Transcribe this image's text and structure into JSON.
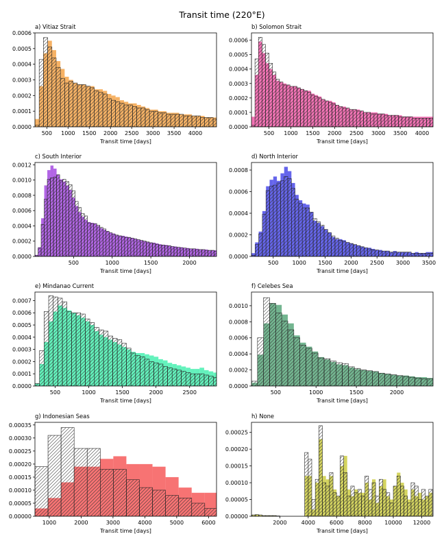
{
  "figure_title": "Transit time (220°E)",
  "chart_data": [
    {
      "type": "histogram",
      "title": "a) Vitiaz Strait",
      "xlabel": "Transit time [days]",
      "ylabel": "",
      "color": "#f5a54a",
      "xlim": [
        220,
        4500
      ],
      "ylim": [
        0,
        0.0006
      ],
      "xticks": [
        500,
        1000,
        1500,
        2000,
        2500,
        3000,
        3500,
        4000
      ],
      "yticks": [
        0,
        0.0001,
        0.0002,
        0.0003,
        0.0004,
        0.0005,
        0.0006
      ],
      "ytick_labels": [
        "0.0000",
        "0.0001",
        "0.0002",
        "0.0003",
        "0.0004",
        "0.0005",
        "0.0006"
      ],
      "bin_start": 220,
      "bin_width": 100,
      "filled_series": [
        5e-05,
        0.00026,
        0.00047,
        0.00055,
        0.00049,
        0.00042,
        0.00037,
        0.00032,
        0.0003,
        0.00028,
        0.00027,
        0.00027,
        0.00026,
        0.00026,
        0.00024,
        0.00024,
        0.00023,
        0.00021,
        0.0002,
        0.00019,
        0.00017,
        0.00016,
        0.00015,
        0.00015,
        0.00014,
        0.00013,
        0.00012,
        0.00011,
        0.00011,
        0.0001,
        0.0001,
        9e-05,
        9e-05,
        9e-05,
        8e-05,
        8e-05,
        8e-05,
        7e-05,
        7e-05,
        7e-05,
        6e-05,
        6e-05,
        6e-05
      ],
      "hatched_series": [
        1e-05,
        0.00043,
        0.00057,
        0.00051,
        0.00044,
        0.00038,
        0.00031,
        0.00028,
        0.00029,
        0.00028,
        0.00027,
        0.00027,
        0.00026,
        0.00025,
        0.00023,
        0.00022,
        0.00021,
        0.00018,
        0.00017,
        0.00016,
        0.00015,
        0.00014,
        0.00014,
        0.00013,
        0.00012,
        0.00012,
        0.00011,
        0.0001,
        0.0001,
        9e-05,
        9e-05,
        8e-05,
        8e-05,
        8e-05,
        8e-05,
        7e-05,
        7e-05,
        7e-05,
        7e-05,
        6e-05,
        6e-05,
        6e-05,
        5e-05
      ]
    },
    {
      "type": "histogram",
      "title": "b) Solomon Strait",
      "xlabel": "Transit time [days]",
      "ylabel": "",
      "color": "#f15aa8",
      "xlim": [
        100,
        4250
      ],
      "ylim": [
        0,
        0.00065
      ],
      "xticks": [
        500,
        1000,
        1500,
        2000,
        2500,
        3000,
        3500,
        4000
      ],
      "yticks": [
        0,
        0.0001,
        0.0002,
        0.0003,
        0.0004,
        0.0005,
        0.0006
      ],
      "ytick_labels": [
        "0.0000",
        "0.0001",
        "0.0002",
        "0.0003",
        "0.0004",
        "0.0005",
        "0.0006"
      ],
      "bin_start": 100,
      "bin_width": 80,
      "filled_series": [
        7e-05,
        0.00036,
        0.00059,
        0.00051,
        0.00044,
        0.0004,
        0.00036,
        0.00032,
        0.00031,
        0.0003,
        0.00029,
        0.00028,
        0.00028,
        0.00027,
        0.00026,
        0.00025,
        0.00025,
        0.00023,
        0.00022,
        0.00021,
        0.00019,
        0.00018,
        0.00018,
        0.00017,
        0.00015,
        0.00014,
        0.00014,
        0.00013,
        0.00012,
        0.00012,
        0.00012,
        0.00011,
        0.0001,
        0.0001,
        0.0001,
        0.0001,
        9e-05,
        9e-05,
        9e-05,
        8e-05,
        8e-05,
        8e-05,
        8e-05,
        7e-05,
        7e-05,
        7e-05,
        7e-05,
        7e-05,
        7e-05,
        7e-05,
        7e-05,
        7e-05
      ],
      "hatched_series": [
        1e-05,
        0.00047,
        0.00062,
        0.00057,
        0.00051,
        0.00044,
        0.00038,
        0.00033,
        0.00031,
        0.00029,
        0.00029,
        0.00028,
        0.00028,
        0.00027,
        0.00026,
        0.00025,
        0.00024,
        0.00022,
        0.00021,
        0.0002,
        0.00019,
        0.00018,
        0.00017,
        0.00016,
        0.00015,
        0.00014,
        0.00013,
        0.00013,
        0.00012,
        0.00012,
        0.00011,
        0.00011,
        0.0001,
        0.0001,
        9e-05,
        9e-05,
        9e-05,
        9e-05,
        8e-05,
        8e-05,
        8e-05,
        8e-05,
        7e-05,
        7e-05,
        7e-05,
        7e-05,
        6e-05,
        6e-05,
        6e-05,
        6e-05,
        6e-05,
        6e-05
      ]
    },
    {
      "type": "histogram",
      "title": "c) South Interior",
      "xlabel": "Transit time [days]",
      "ylabel": "",
      "color": "#a44ae0",
      "xlim": [
        0,
        2350
      ],
      "ylim": [
        0,
        0.00123
      ],
      "xticks": [
        500,
        1000,
        1500,
        2000
      ],
      "yticks": [
        0,
        0.0002,
        0.0004,
        0.0006,
        0.0008,
        0.001,
        0.0012
      ],
      "ytick_labels": [
        "0.0000",
        "0.0002",
        "0.0004",
        "0.0006",
        "0.0008",
        "0.0010",
        "0.0012"
      ],
      "bin_start": 0,
      "bin_width": 40,
      "filled_series": [
        2e-05,
        0.00012,
        0.0005,
        0.00093,
        0.00113,
        0.00119,
        0.00115,
        0.00107,
        0.00101,
        0.00098,
        0.00093,
        0.00087,
        0.00077,
        0.00066,
        0.00058,
        0.00052,
        0.00048,
        0.00045,
        0.00044,
        0.00043,
        0.0004,
        0.00037,
        0.00035,
        0.00033,
        0.00031,
        0.0003,
        0.00028,
        0.00027,
        0.00027,
        0.00026,
        0.00025,
        0.00024,
        0.00023,
        0.00022,
        0.00021,
        0.0002,
        0.00019,
        0.00018,
        0.00018,
        0.00017,
        0.00016,
        0.00015,
        0.00015,
        0.00014,
        0.00013,
        0.00013,
        0.00012,
        0.00012,
        0.00011,
        0.00011,
        0.0001,
        0.0001,
        0.0001,
        9e-05,
        9e-05,
        9e-05,
        8e-05,
        8e-05,
        8e-05,
        8e-05
      ],
      "hatched_series": [
        1e-05,
        0.00011,
        0.00042,
        0.00075,
        0.00101,
        0.00103,
        0.00104,
        0.00107,
        0.00099,
        0.00101,
        0.00098,
        0.00094,
        0.00086,
        0.00072,
        0.00064,
        0.00056,
        0.00053,
        0.00044,
        0.00043,
        0.00043,
        0.00041,
        0.00038,
        0.00036,
        0.00033,
        0.00031,
        0.00029,
        0.00028,
        0.00027,
        0.00026,
        0.00025,
        0.00025,
        0.00024,
        0.00023,
        0.00022,
        0.00021,
        0.0002,
        0.00019,
        0.00018,
        0.00017,
        0.00016,
        0.00015,
        0.00015,
        0.00014,
        0.00014,
        0.00013,
        0.00012,
        0.00012,
        0.00011,
        0.00011,
        0.0001,
        0.0001,
        0.0001,
        9e-05,
        9e-05,
        9e-05,
        8e-05,
        8e-05,
        8e-05,
        7e-05,
        7e-05
      ]
    },
    {
      "type": "histogram",
      "title": "d) North Interior",
      "xlabel": "Transit time [days]",
      "ylabel": "",
      "color": "#4a4ae8",
      "xlim": [
        80,
        3580
      ],
      "ylim": [
        0,
        0.00087
      ],
      "xticks": [
        500,
        1000,
        1500,
        2000,
        2500,
        3000,
        3500
      ],
      "yticks": [
        0,
        0.0002,
        0.0004,
        0.0006,
        0.0008
      ],
      "ytick_labels": [
        "0.0000",
        "0.0002",
        "0.0004",
        "0.0006",
        "0.0008"
      ],
      "bin_start": 80,
      "bin_width": 70,
      "filled_series": [
        3e-05,
        0.00013,
        0.00023,
        0.00042,
        0.00065,
        0.00071,
        0.00074,
        0.0007,
        0.00077,
        0.00083,
        0.00079,
        0.00068,
        0.00057,
        0.00052,
        0.00049,
        0.00048,
        0.00041,
        0.00033,
        0.00031,
        0.00028,
        0.00025,
        0.00022,
        0.00018,
        0.00016,
        0.00016,
        0.00015,
        0.00013,
        0.00012,
        0.00011,
        0.0001,
        9e-05,
        8e-05,
        8e-05,
        7e-05,
        6e-05,
        6e-05,
        5e-05,
        5e-05,
        4e-05,
        5e-05,
        4e-05,
        4e-05,
        4e-05,
        4e-05,
        3e-05,
        4e-05,
        3e-05,
        3e-05,
        4e-05,
        4e-05
      ],
      "hatched_series": [
        1e-05,
        0.00011,
        0.00021,
        0.00039,
        0.00061,
        0.00065,
        0.00066,
        0.00068,
        0.0007,
        0.00074,
        0.00072,
        0.00063,
        0.00053,
        0.00049,
        0.00045,
        0.00045,
        0.00041,
        0.00035,
        0.00032,
        0.00029,
        0.00025,
        0.00022,
        0.00019,
        0.00017,
        0.00015,
        0.00014,
        0.00013,
        0.00012,
        0.00011,
        0.0001,
        9e-05,
        8e-05,
        7e-05,
        6e-05,
        6e-05,
        5e-05,
        5e-05,
        5e-05,
        4e-05,
        4e-05,
        4e-05,
        4e-05,
        4e-05,
        4e-05,
        3e-05,
        3e-05,
        3e-05,
        3e-05,
        3e-05,
        3e-05
      ]
    },
    {
      "type": "histogram",
      "title": "e) Mindanao Current",
      "xlabel": "Transit time [days]",
      "ylabel": "",
      "color": "#48f0b0",
      "xlim": [
        200,
        2900
      ],
      "ylim": [
        0,
        0.00077
      ],
      "xticks": [
        500,
        1000,
        1500,
        2000,
        2500
      ],
      "yticks": [
        0,
        0.0001,
        0.0002,
        0.0003,
        0.0004,
        0.0005,
        0.0006,
        0.0007
      ],
      "ytick_labels": [
        "0.0000",
        "0.0001",
        "0.0002",
        "0.0003",
        "0.0004",
        "0.0005",
        "0.0006",
        "0.0007"
      ],
      "bin_start": 200,
      "bin_width": 68,
      "filled_series": [
        2e-05,
        0.00018,
        0.00036,
        0.00053,
        0.00061,
        0.00066,
        0.00064,
        0.00062,
        0.0006,
        0.00058,
        0.00056,
        0.00053,
        0.0005,
        0.00045,
        0.00042,
        0.0004,
        0.00038,
        0.00036,
        0.00034,
        0.00032,
        0.0003,
        0.00028,
        0.00027,
        0.00027,
        0.00026,
        0.00025,
        0.00024,
        0.00022,
        0.00021,
        0.00019,
        0.00018,
        0.00017,
        0.00016,
        0.00015,
        0.00014,
        0.00014,
        0.00015,
        0.00013,
        0.00012,
        0.00011,
        0.0001
      ],
      "hatched_series": [
        2e-05,
        0.00029,
        0.00061,
        0.00074,
        0.00073,
        0.00072,
        0.00069,
        0.00061,
        0.0006,
        0.0006,
        0.00059,
        0.00055,
        0.00052,
        0.00048,
        0.00046,
        0.00045,
        0.00041,
        0.00039,
        0.00038,
        0.00035,
        0.00031,
        0.00027,
        0.00025,
        0.00024,
        0.00022,
        0.0002,
        0.00019,
        0.00018,
        0.00016,
        0.00015,
        0.00014,
        0.00013,
        0.00012,
        0.00011,
        0.0001,
        0.0001,
        0.0001,
        9e-05,
        8e-05,
        7e-05,
        7e-05
      ]
    },
    {
      "type": "histogram",
      "title": "f) Celebes Sea",
      "xlabel": "Transit time [days]",
      "ylabel": "",
      "color": "#5aa87c",
      "xlim": [
        200,
        2450
      ],
      "ylim": [
        0,
        0.00117
      ],
      "xticks": [
        500,
        1000,
        1500,
        2000
      ],
      "yticks": [
        0,
        0.0002,
        0.0004,
        0.0006,
        0.0008,
        0.001
      ],
      "ytick_labels": [
        "0.0000",
        "0.0002",
        "0.0004",
        "0.0006",
        "0.0008",
        "0.0010"
      ],
      "bin_start": 200,
      "bin_width": 75,
      "filled_series": [
        4e-05,
        0.00039,
        0.00078,
        0.00103,
        0.00101,
        0.00089,
        0.00078,
        0.00063,
        0.00054,
        0.00049,
        0.00043,
        0.00036,
        0.00033,
        0.0003,
        0.00027,
        0.00026,
        0.00023,
        0.00021,
        0.0002,
        0.00019,
        0.00018,
        0.00016,
        0.00015,
        0.00014,
        0.00013,
        0.00013,
        0.00012,
        0.00011,
        0.00011,
        0.0001
      ],
      "hatched_series": [
        6e-05,
        0.0006,
        0.0011,
        0.00103,
        0.00091,
        0.00081,
        0.0007,
        0.0006,
        0.00051,
        0.00047,
        0.00041,
        0.00035,
        0.00034,
        0.00031,
        0.00029,
        0.00028,
        0.00024,
        0.00022,
        0.0002,
        0.00019,
        0.00018,
        0.00016,
        0.00015,
        0.00014,
        0.00013,
        0.00012,
        0.00011,
        0.0001,
        9e-05,
        9e-05
      ]
    },
    {
      "type": "histogram",
      "title": "g) Indonesian Seas",
      "xlabel": "Transit time [days]",
      "ylabel": "",
      "color": "#f65a5a",
      "xlim": [
        550,
        6250
      ],
      "ylim": [
        0,
        0.00036
      ],
      "xticks": [
        1000,
        2000,
        3000,
        4000,
        5000,
        6000
      ],
      "yticks": [
        0,
        5e-05,
        0.0001,
        0.00015,
        0.0002,
        0.00025,
        0.0003,
        0.00035
      ],
      "ytick_labels": [
        "0.00000",
        "0.00005",
        "0.00010",
        "0.00015",
        "0.00020",
        "0.00025",
        "0.00030",
        "0.00035"
      ],
      "bin_start": 550,
      "bin_width": 410,
      "filled_series": [
        3e-05,
        7e-05,
        0.00013,
        0.00019,
        0.00019,
        0.00022,
        0.00023,
        0.0002,
        0.0002,
        0.00019,
        0.00015,
        0.00011,
        9e-05,
        9e-05
      ],
      "hatched_series": [
        0.00019,
        0.00031,
        0.00034,
        0.00026,
        0.00026,
        0.00018,
        0.00018,
        0.00014,
        0.00011,
        0.0001,
        8e-05,
        7e-05,
        5e-05,
        3e-05
      ]
    },
    {
      "type": "histogram",
      "title": "h) None",
      "xlabel": "Transit time [days]",
      "ylabel": "",
      "color": "#cccc44",
      "xlim": [
        0,
        12800
      ],
      "ylim": [
        0,
        0.00028
      ],
      "xticks": [
        2000,
        4000,
        6000,
        8000,
        10000,
        12000
      ],
      "yticks": [
        0,
        5e-05,
        0.0001,
        0.00015,
        0.0002,
        0.00025
      ],
      "ytick_labels": [
        "0.00000",
        "0.00005",
        "0.00010",
        "0.00015",
        "0.00020",
        "0.00025"
      ],
      "bin_start": 0,
      "bin_width": 250,
      "filled_series": [
        3e-06,
        5e-06,
        3e-06,
        2e-06,
        2e-06,
        2e-06,
        2e-06,
        1e-06,
        0,
        0,
        0,
        0,
        0,
        0,
        0,
        0.00012,
        0.00012,
        2e-05,
        0.0001,
        0.00023,
        0.00012,
        0.00011,
        0.00012,
        8e-05,
        6e-05,
        0.00015,
        0.00018,
        8e-05,
        6e-05,
        8e-05,
        7e-05,
        7e-05,
        0.0001,
        5e-05,
        0.00011,
        4e-05,
        9e-05,
        0.00011,
        6e-05,
        5e-05,
        9e-05,
        0.00013,
        0.0001,
        8e-05,
        5e-05,
        8e-05,
        6e-05,
        7e-05,
        5e-05,
        6e-05,
        7e-05
      ],
      "hatched_series": [
        4e-06,
        5e-06,
        4e-06,
        2e-06,
        2e-06,
        2e-06,
        2e-06,
        1e-06,
        0,
        0,
        0,
        0,
        0,
        0,
        0,
        0.00019,
        0.00017,
        5e-05,
        0.00011,
        0.00027,
        0.0001,
        9e-05,
        0.00013,
        7e-05,
        6e-05,
        0.00018,
        0.00013,
        6e-05,
        9e-05,
        7e-05,
        8e-05,
        6e-05,
        0.00012,
        8e-05,
        0.0001,
        6e-05,
        0.00011,
        8e-05,
        7e-05,
        4e-05,
        9e-05,
        0.00012,
        9e-05,
        6e-05,
        4e-05,
        0.0001,
        9e-05,
        5e-05,
        8e-05,
        6e-05,
        8e-05
      ]
    }
  ]
}
